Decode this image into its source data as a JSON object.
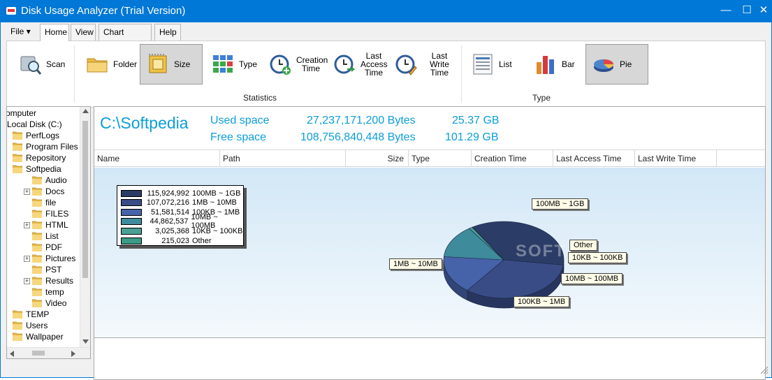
{
  "window": {
    "title": "Disk Usage Analyzer (Trial Version)",
    "controls": {
      "minimize": "—",
      "maximize": "☐",
      "close": "✕"
    }
  },
  "menu": {
    "tabs": [
      {
        "label": "File",
        "arrow": "▾"
      },
      {
        "label": "Home"
      },
      {
        "label": "View"
      },
      {
        "label": "Chart Options"
      },
      {
        "label": "Help"
      }
    ]
  },
  "ribbon": {
    "statistics_label": "Statistics",
    "type_label": "Type",
    "buttons": [
      {
        "label": "Scan",
        "icon": "scan-icon"
      },
      {
        "label": "Folder",
        "icon": "folder-icon"
      },
      {
        "label": "Size",
        "icon": "size-icon",
        "selected": true
      },
      {
        "label": "Type",
        "icon": "type-grid-icon"
      },
      {
        "label": "Creation Time",
        "icon": "creation-time-icon"
      },
      {
        "label": "Last Access Time",
        "icon": "last-access-time-icon"
      },
      {
        "label": "Last Write Time",
        "icon": "last-write-time-icon"
      },
      {
        "label": "List",
        "icon": "list-icon"
      },
      {
        "label": "Bar",
        "icon": "bar-chart-icon"
      },
      {
        "label": "Pie",
        "icon": "pie-chart-icon",
        "selected": true
      }
    ]
  },
  "tree": {
    "items": [
      {
        "label": "omputer",
        "level": 0
      },
      {
        "label": "Local Disk (C:)",
        "level": 0
      },
      {
        "label": "PerfLogs",
        "level": 1
      },
      {
        "label": "Program Files",
        "level": 1
      },
      {
        "label": "Repository",
        "level": 1
      },
      {
        "label": "Softpedia",
        "level": 1
      },
      {
        "label": "Audio",
        "level": 2
      },
      {
        "label": "Docs",
        "level": 2,
        "expander": "+"
      },
      {
        "label": "file",
        "level": 2
      },
      {
        "label": "FILES",
        "level": 2
      },
      {
        "label": "HTML",
        "level": 2,
        "expander": "+"
      },
      {
        "label": "List",
        "level": 2
      },
      {
        "label": "PDF",
        "level": 2
      },
      {
        "label": "Pictures",
        "level": 2,
        "expander": "+"
      },
      {
        "label": "PST",
        "level": 2
      },
      {
        "label": "Results",
        "level": 2,
        "expander": "+"
      },
      {
        "label": "temp",
        "level": 2
      },
      {
        "label": "Video",
        "level": 2
      },
      {
        "label": "TEMP",
        "level": 1
      },
      {
        "label": "Users",
        "level": 1
      },
      {
        "label": "Wallpaper",
        "level": 1
      }
    ]
  },
  "summary": {
    "drive": "C:\\Softpedia",
    "used_label": "Used space",
    "used_bytes": "27,237,171,200 Bytes",
    "used_gb": "25.37 GB",
    "free_label": "Free space",
    "free_bytes": "108,756,840,448 Bytes",
    "free_gb": "101.29 GB"
  },
  "columns": [
    "Name",
    "Path",
    "Size",
    "Type",
    "Creation Time",
    "Last Access Time",
    "Last Write Time"
  ],
  "chart_data": {
    "type": "pie",
    "title": "",
    "categories": [
      "100MB ~ 1GB",
      "1MB ~ 10MB",
      "100KB ~ 1MB",
      "10MB ~ 100MB",
      "10KB ~ 100KB",
      "Other"
    ],
    "values": [
      115924992,
      107072216,
      51581514,
      44862537,
      3025368,
      215023
    ],
    "value_labels": [
      "115,924,992",
      "107,072,216",
      "51,581,514",
      "44,862,537",
      "3,025,368",
      "215,023"
    ],
    "colors": [
      "#2b3d66",
      "#394c86",
      "#4662a9",
      "#3e8b9c",
      "#4aa095",
      "#3a9b86"
    ],
    "legend": {
      "placement": "top-left",
      "order": [
        "100MB ~ 1GB",
        "1MB ~ 10MB",
        "100KB ~ 1MB",
        "10MB ~ 100MB",
        "10KB ~ 100KB",
        "Other"
      ],
      "values": [
        "115,924,992",
        "107,072,216",
        "51,581,514",
        "44,862,537",
        "3,025,368",
        "215,023"
      ],
      "colors": [
        "#2b3d66",
        "#394c86",
        "#4662a9",
        "#3e8b9c",
        "#4aa095",
        "#3a9b86"
      ]
    },
    "style": "3d"
  },
  "watermark": "SOFT"
}
